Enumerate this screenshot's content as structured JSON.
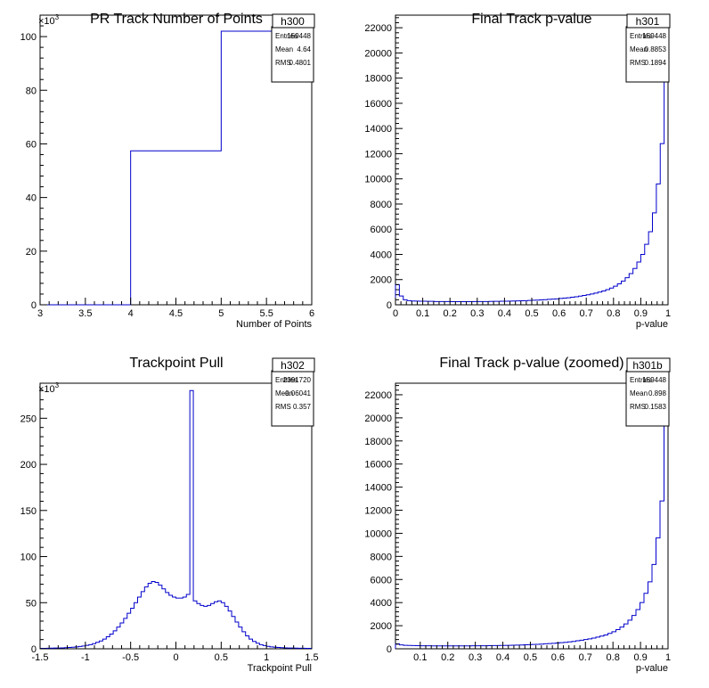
{
  "chart_data": [
    {
      "type": "histogram",
      "title": "PR Track Number of Points",
      "xlabel": "Number of Points",
      "ylabel": "",
      "xlim": [
        3,
        6
      ],
      "ylim": [
        0,
        108
      ],
      "y_multiplier": "×10",
      "y_multiplier_exp": "3",
      "xticks": [
        3,
        3.5,
        4,
        4.5,
        5,
        5.5,
        6
      ],
      "yticks": [
        0,
        20,
        40,
        60,
        80,
        100
      ],
      "stats": {
        "name": "h300",
        "rows": [
          [
            "Entries",
            "159448"
          ],
          [
            "Mean",
            "4.64"
          ],
          [
            "RMS",
            "0.4801"
          ]
        ]
      },
      "bins": {
        "edges": [
          3,
          4,
          5,
          6
        ],
        "values": [
          0,
          57.4,
          102
        ]
      },
      "line_color": "#0000cc"
    },
    {
      "type": "histogram",
      "title": "Final Track p-value",
      "xlabel": "p-value",
      "ylabel": "",
      "xlim": [
        0,
        1
      ],
      "ylim": [
        0,
        23000
      ],
      "xticks": [
        0,
        0.1,
        0.2,
        0.3,
        0.4,
        0.5,
        0.6,
        0.7,
        0.8,
        0.9,
        1
      ],
      "yticks": [
        0,
        2000,
        4000,
        6000,
        8000,
        10000,
        12000,
        14000,
        16000,
        18000,
        20000,
        22000
      ],
      "stats": {
        "name": "h301",
        "rows": [
          [
            "Entries",
            "159448"
          ],
          [
            "Mean",
            "0.8853"
          ],
          [
            "RMS",
            "0.1894"
          ]
        ]
      },
      "bins": {
        "xmin": 0,
        "xmax": 1,
        "values": [
          1600,
          700,
          400,
          330,
          300,
          290,
          280,
          280,
          270,
          270,
          260,
          260,
          255,
          255,
          250,
          250,
          250,
          250,
          250,
          250,
          255,
          255,
          260,
          260,
          265,
          270,
          275,
          280,
          285,
          290,
          300,
          310,
          320,
          330,
          345,
          360,
          375,
          390,
          410,
          430,
          450,
          470,
          500,
          530,
          560,
          600,
          640,
          690,
          740,
          800,
          860,
          930,
          1010,
          1100,
          1200,
          1330,
          1480,
          1660,
          1880,
          2150,
          2480,
          2880,
          3400,
          4000,
          4800,
          5800,
          7300,
          9600,
          12800,
          19500
        ]
      },
      "line_color": "#0000cc"
    },
    {
      "type": "histogram",
      "title": "Trackpoint Pull",
      "xlabel": "Trackpoint Pull",
      "ylabel": "",
      "xlim": [
        -1.5,
        1.5
      ],
      "ylim": [
        0,
        288
      ],
      "y_multiplier": "×10",
      "y_multiplier_exp": "3",
      "xticks": [
        -1.5,
        -1,
        -0.5,
        0,
        0.5,
        1,
        1.5
      ],
      "yticks": [
        0,
        50,
        100,
        150,
        200,
        250
      ],
      "stats": {
        "name": "h302",
        "rows": [
          [
            "Entries",
            "2391720"
          ],
          [
            "Mean",
            "-0.06041"
          ],
          [
            "RMS",
            "0.357"
          ]
        ]
      },
      "bins": {
        "xmin": -1.5,
        "xmax": 1.5,
        "values": [
          0.5,
          0.5,
          0.6,
          0.7,
          0.8,
          0.9,
          1,
          1.2,
          1.4,
          1.7,
          2,
          2.5,
          3,
          3.7,
          4.5,
          5.5,
          7,
          8.5,
          10.5,
          13,
          16,
          19.5,
          23.5,
          28,
          33,
          38.5,
          44,
          50,
          56,
          62,
          67,
          71,
          73,
          72,
          69,
          65,
          61,
          58,
          56,
          55,
          55,
          56,
          59,
          280,
          52,
          49,
          47,
          46,
          47,
          49,
          51,
          52,
          50,
          46,
          41,
          35,
          29,
          23.5,
          18.5,
          14,
          10.5,
          8,
          6,
          4.5,
          3.5,
          2.7,
          2.1,
          1.7,
          1.4,
          1.2,
          1,
          0.9,
          0.8,
          0.7,
          0.6,
          0.6,
          0.5,
          0.5
        ]
      },
      "line_color": "#0000cc"
    },
    {
      "type": "histogram",
      "title": "Final Track p-value (zoomed)",
      "xlabel": "p-value",
      "ylabel": "",
      "xlim": [
        0.01,
        1
      ],
      "ylim": [
        0,
        23000
      ],
      "xticks": [
        0.1,
        0.2,
        0.3,
        0.4,
        0.5,
        0.6,
        0.7,
        0.8,
        0.9,
        1
      ],
      "yticks": [
        0,
        2000,
        4000,
        6000,
        8000,
        10000,
        12000,
        14000,
        16000,
        18000,
        20000,
        22000
      ],
      "stats": {
        "name": "h301b",
        "rows": [
          [
            "Entries",
            "159448"
          ],
          [
            "Mean",
            "0.898"
          ],
          [
            "RMS",
            "0.1583"
          ]
        ]
      },
      "bins": {
        "xmin": 0.01,
        "xmax": 1,
        "values": [
          420,
          340,
          300,
          285,
          275,
          270,
          265,
          260,
          260,
          255,
          255,
          250,
          250,
          250,
          250,
          250,
          250,
          252,
          255,
          258,
          260,
          262,
          265,
          270,
          275,
          280,
          285,
          290,
          300,
          310,
          320,
          330,
          345,
          360,
          375,
          390,
          410,
          430,
          450,
          470,
          500,
          530,
          560,
          600,
          640,
          690,
          740,
          800,
          860,
          930,
          1010,
          1100,
          1200,
          1330,
          1480,
          1660,
          1880,
          2150,
          2480,
          2880,
          3400,
          4000,
          4800,
          5800,
          7300,
          9600,
          12800,
          19500
        ]
      },
      "line_color": "#0000cc"
    }
  ]
}
